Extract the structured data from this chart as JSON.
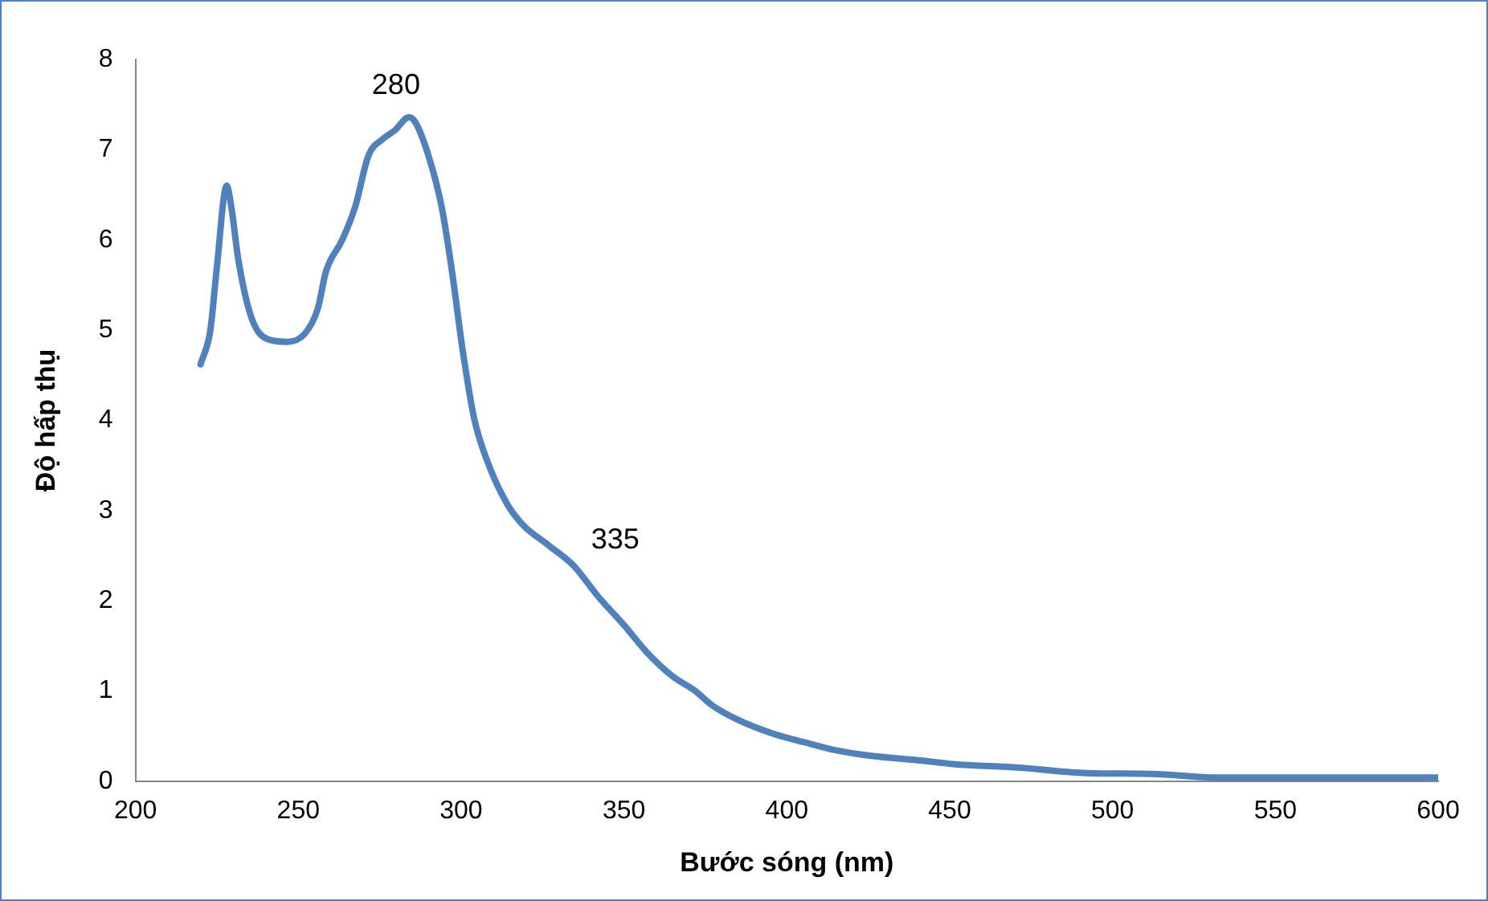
{
  "chart_data": {
    "type": "line",
    "xlabel": "Bước sóng (nm)",
    "ylabel": "Độ hấp thụ",
    "xlim": [
      200,
      600
    ],
    "xticks": [
      200,
      250,
      300,
      350,
      400,
      450,
      500,
      550,
      600
    ],
    "ylim": [
      0,
      8
    ],
    "yticks": [
      0,
      1,
      2,
      3,
      4,
      5,
      6,
      7,
      8
    ],
    "grid": false,
    "legend": false,
    "marker": "none",
    "line_style": "solid",
    "annotations": [
      {
        "text": "280",
        "x": 280,
        "y": 7.3
      },
      {
        "text": "335",
        "x": 335,
        "y": 2.4
      }
    ],
    "series": [
      {
        "color": "#4f81bd",
        "x": [
          220,
          223,
          225,
          228,
          229.5,
          231.5,
          235.5,
          240.5,
          246.5,
          252,
          256,
          258.5,
          263.5,
          267.5,
          271.5,
          276,
          279.5,
          284,
          286,
          290,
          294,
          297,
          300.5,
          304,
          308,
          314,
          319,
          327,
          334.5,
          342,
          350,
          357,
          365,
          371.5,
          377.5,
          385,
          395.5,
          405.5,
          415.5,
          426,
          441,
          451,
          471.5,
          492,
          512,
          532.5,
          553,
          573,
          600
        ],
        "values": [
          4.62,
          5.0,
          5.7,
          6.6,
          6.35,
          5.8,
          5.15,
          4.9,
          4.87,
          4.96,
          5.24,
          5.65,
          6.0,
          6.37,
          6.93,
          7.12,
          7.21,
          7.36,
          7.3,
          6.93,
          6.37,
          5.7,
          4.77,
          4.02,
          3.55,
          3.08,
          2.84,
          2.61,
          2.39,
          2.05,
          1.73,
          1.43,
          1.16,
          1.01,
          0.83,
          0.68,
          0.53,
          0.43,
          0.34,
          0.28,
          0.23,
          0.19,
          0.15,
          0.09,
          0.08,
          0.04,
          0.04,
          0.04,
          0.04
        ]
      }
    ]
  }
}
